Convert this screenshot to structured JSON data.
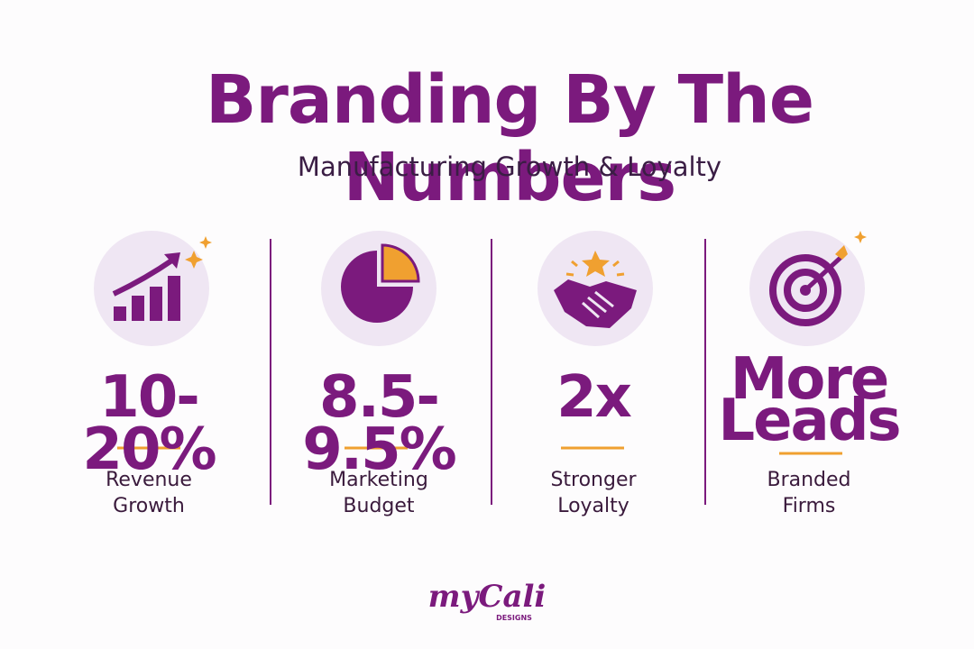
{
  "header": {
    "title": "Branding By The Numbers",
    "subtitle": "Manufacturing Growth & Loyalty"
  },
  "stats": [
    {
      "value_lines": [
        "10-20%"
      ],
      "label_lines": [
        "Revenue",
        "Growth"
      ]
    },
    {
      "value_lines": [
        "8.5-9.5%"
      ],
      "label_lines": [
        "Marketing",
        "Budget"
      ]
    },
    {
      "value_lines": [
        "2x"
      ],
      "label_lines": [
        "Stronger",
        "Loyalty"
      ]
    },
    {
      "value_lines": [
        "More",
        "Leads"
      ],
      "label_lines": [
        "Branded",
        "Firms"
      ]
    }
  ],
  "logo": {
    "name": "myCali",
    "tagline": "DESIGNS"
  }
}
